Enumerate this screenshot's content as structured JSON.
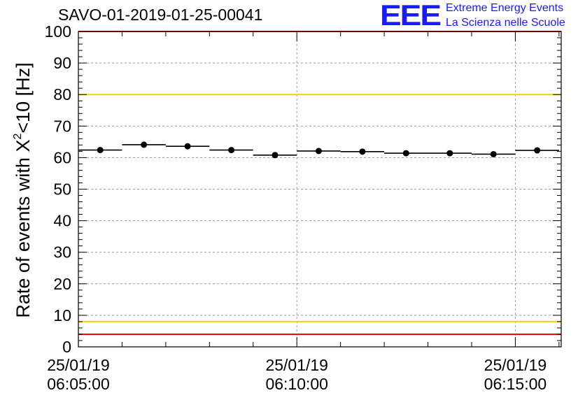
{
  "header": {
    "run_id": "SAVO-01-2019-01-25-00041",
    "logo_text": "EEE",
    "tagline_1": "Extreme Energy Events",
    "tagline_2": "La Scienza nelle Scuole"
  },
  "chart_data": {
    "type": "scatter",
    "title": "SAVO-01-2019-01-25-00041",
    "ylabel": "Rate of events with X^2<10 [Hz]",
    "ylabel_parts": {
      "before": "Rate of events with X",
      "sup": "2",
      "after": "<10 [Hz]"
    },
    "xlabel": "",
    "ylim": [
      0,
      100
    ],
    "yticks": [
      0,
      10,
      20,
      30,
      40,
      50,
      60,
      70,
      80,
      90,
      100
    ],
    "xlim_minutes": [
      0,
      11.05
    ],
    "xticks": [
      {
        "minute": 0,
        "date": "25/01/19",
        "time": "06:05:00"
      },
      {
        "minute": 5,
        "date": "25/01/19",
        "time": "06:10:00"
      },
      {
        "minute": 10,
        "date": "25/01/19",
        "time": "06:15:00"
      }
    ],
    "grid": true,
    "bin_width_minutes": 1,
    "points": [
      {
        "x": 0.5,
        "y": 62.4
      },
      {
        "x": 1.5,
        "y": 64.1
      },
      {
        "x": 2.5,
        "y": 63.6
      },
      {
        "x": 3.5,
        "y": 62.4
      },
      {
        "x": 4.5,
        "y": 60.8
      },
      {
        "x": 5.5,
        "y": 62.1
      },
      {
        "x": 6.5,
        "y": 61.9
      },
      {
        "x": 7.5,
        "y": 61.4
      },
      {
        "x": 8.5,
        "y": 61.4
      },
      {
        "x": 9.5,
        "y": 61.1
      },
      {
        "x": 10.5,
        "y": 62.3
      }
    ],
    "reference_lines": [
      {
        "y": 100,
        "color": "#ff0000"
      },
      {
        "y": 80,
        "color": "#ffcc00"
      },
      {
        "y": 8,
        "color": "#ffcc00"
      },
      {
        "y": 4,
        "color": "#ff0000"
      }
    ]
  }
}
